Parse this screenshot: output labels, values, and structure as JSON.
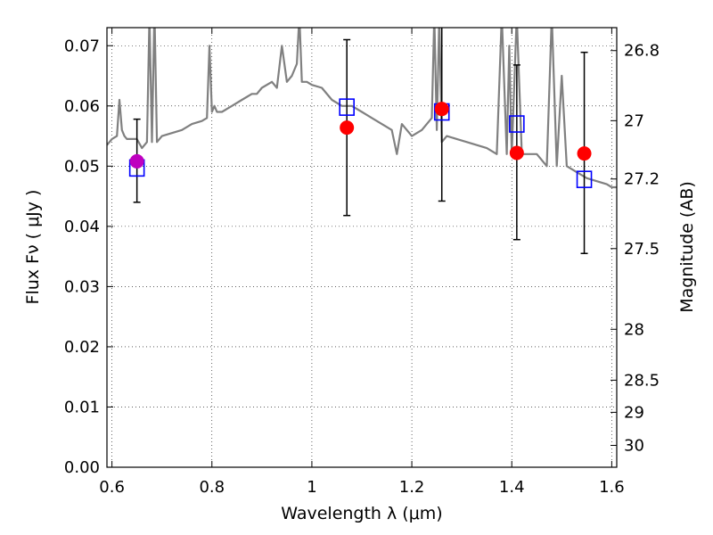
{
  "chart_data": {
    "type": "scatter",
    "title": "",
    "xlabel": "Wavelength  λ (μm)",
    "ylabel": "Flux  Fν  ( μJy )",
    "y2label": "Magnitude (AB)",
    "xlim": [
      0.59,
      1.61
    ],
    "ylim": [
      0.0,
      0.073
    ],
    "grid": true,
    "xticks": [
      {
        "v": 0.6,
        "label": "0.6"
      },
      {
        "v": 0.8,
        "label": "0.8"
      },
      {
        "v": 1.0,
        "label": "1"
      },
      {
        "v": 1.2,
        "label": "1.2"
      },
      {
        "v": 1.4,
        "label": "1.4"
      },
      {
        "v": 1.6,
        "label": "1.6"
      }
    ],
    "yticks": [
      {
        "v": 0.0,
        "label": "0.00"
      },
      {
        "v": 0.01,
        "label": "0.01"
      },
      {
        "v": 0.02,
        "label": "0.02"
      },
      {
        "v": 0.03,
        "label": "0.03"
      },
      {
        "v": 0.04,
        "label": "0.04"
      },
      {
        "v": 0.05,
        "label": "0.05"
      },
      {
        "v": 0.06,
        "label": "0.06"
      },
      {
        "v": 0.07,
        "label": "0.07"
      }
    ],
    "y2ticks": [
      {
        "mag": 26.8,
        "label": "26.8"
      },
      {
        "mag": 27.0,
        "label": "27"
      },
      {
        "mag": 27.2,
        "label": "27.2"
      },
      {
        "mag": 27.5,
        "label": "27.5"
      },
      {
        "mag": 28.0,
        "label": "28"
      },
      {
        "mag": 28.5,
        "label": "28.5"
      },
      {
        "mag": 29.0,
        "label": "29"
      },
      {
        "mag": 30.0,
        "label": "30"
      }
    ],
    "series": [
      {
        "type": "line",
        "color": "#808080",
        "x": [
          0.59,
          0.6,
          0.61,
          0.615,
          0.62,
          0.625,
          0.63,
          0.64,
          0.65,
          0.66,
          0.67,
          0.675,
          0.68,
          0.685,
          0.69,
          0.7,
          0.72,
          0.74,
          0.76,
          0.78,
          0.79,
          0.795,
          0.8,
          0.805,
          0.81,
          0.82,
          0.84,
          0.86,
          0.88,
          0.89,
          0.9,
          0.92,
          0.93,
          0.94,
          0.95,
          0.96,
          0.97,
          0.975,
          0.98,
          0.99,
          1.0,
          1.02,
          1.04,
          1.06,
          1.08,
          1.1,
          1.12,
          1.14,
          1.16,
          1.17,
          1.18,
          1.19,
          1.2,
          1.22,
          1.24,
          1.245,
          1.25,
          1.255,
          1.26,
          1.27,
          1.29,
          1.31,
          1.33,
          1.35,
          1.37,
          1.38,
          1.39,
          1.395,
          1.4,
          1.41,
          1.42,
          1.45,
          1.47,
          1.48,
          1.49,
          1.5,
          1.51,
          1.52,
          1.53,
          1.55,
          1.57,
          1.59,
          1.6,
          1.61
        ],
        "y": [
          0.0535,
          0.0545,
          0.055,
          0.061,
          0.056,
          0.055,
          0.0545,
          0.0545,
          0.0545,
          0.053,
          0.054,
          0.075,
          0.054,
          0.076,
          0.054,
          0.055,
          0.0555,
          0.056,
          0.057,
          0.0575,
          0.058,
          0.07,
          0.059,
          0.06,
          0.059,
          0.059,
          0.06,
          0.061,
          0.062,
          0.062,
          0.063,
          0.064,
          0.063,
          0.07,
          0.064,
          0.065,
          0.067,
          0.075,
          0.064,
          0.064,
          0.0635,
          0.063,
          0.061,
          0.06,
          0.06,
          0.059,
          0.058,
          0.057,
          0.056,
          0.052,
          0.057,
          0.056,
          0.055,
          0.056,
          0.058,
          0.075,
          0.056,
          0.075,
          0.054,
          0.055,
          0.0545,
          0.054,
          0.0535,
          0.053,
          0.052,
          0.075,
          0.052,
          0.07,
          0.052,
          0.075,
          0.052,
          0.052,
          0.05,
          0.075,
          0.05,
          0.065,
          0.05,
          0.0495,
          0.049,
          0.048,
          0.0475,
          0.047,
          0.0465,
          0.0465
        ]
      },
      {
        "type": "scatter",
        "marker": "square-open",
        "color": "#0000ff",
        "x": [
          0.65,
          1.07,
          1.26,
          1.41,
          1.545
        ],
        "y": [
          0.0497,
          0.0598,
          0.059,
          0.057,
          0.0478
        ]
      },
      {
        "type": "scatter",
        "marker": "circle",
        "color": "#ff0000",
        "x": [
          0.65,
          1.07,
          1.26,
          1.41,
          1.545
        ],
        "y": [
          0.0508,
          0.0564,
          0.0595,
          0.0522,
          0.0521
        ],
        "point_colors": [
          "#bf00bf",
          "#ff0000",
          "#ff0000",
          "#ff0000",
          "#ff0000"
        ],
        "err_low": [
          0.044,
          0.0418,
          0.0442,
          0.0378,
          0.0355
        ],
        "err_high": [
          0.0578,
          0.071,
          0.0735,
          0.0668,
          0.0689
        ]
      }
    ]
  }
}
